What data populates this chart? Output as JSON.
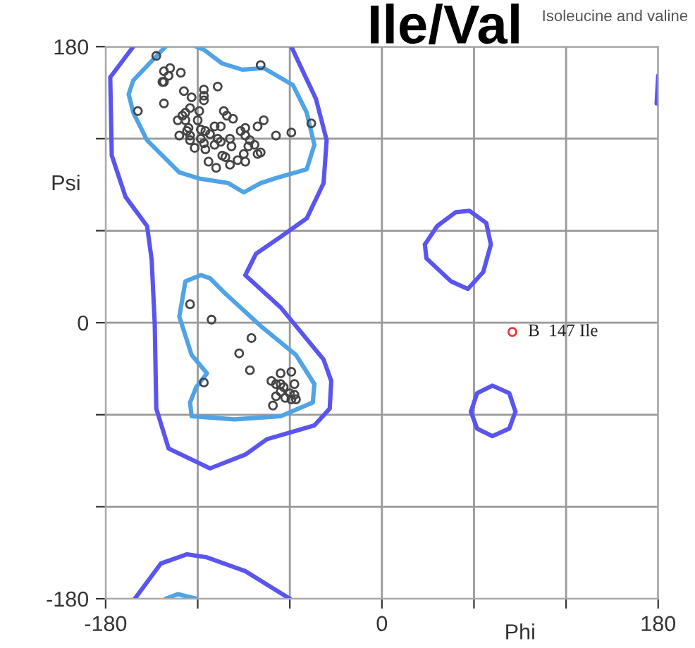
{
  "chart_data": {
    "type": "scatter",
    "title": "Ile/Val",
    "subtitle": "Isoleucine and valine",
    "xlabel": "Phi",
    "ylabel": "Psi",
    "xlim": [
      -180,
      180
    ],
    "ylim": [
      -180,
      180
    ],
    "xticks": [
      -180,
      {
        "value": -120,
        "label": null
      },
      {
        "value": -60,
        "label": null
      },
      0,
      {
        "value": 60,
        "label": null
      },
      {
        "value": 120,
        "label": null
      },
      180
    ],
    "yticks": [
      -180,
      {
        "value": -120,
        "label": null
      },
      {
        "value": -60,
        "label": null
      },
      0,
      {
        "value": 60,
        "label": null
      },
      {
        "value": 120,
        "label": null
      },
      180
    ],
    "grid": true,
    "legend": false,
    "marker": "circle",
    "annotations": [
      {
        "text": "B  147 Ile",
        "x": 85,
        "y": -6
      }
    ],
    "series": [
      {
        "type": "line",
        "marker": "none",
        "color": "#5a55ee",
        "x": [
          -177,
          -162,
          null,
          -177,
          -176,
          -167,
          -153,
          -150,
          -148,
          -147,
          -139,
          -112,
          -89,
          -75,
          -44,
          -34,
          -33,
          null,
          -89,
          -66,
          -38,
          -33,
          null,
          -89,
          -82,
          -66,
          -49,
          -38,
          -36,
          null,
          -59,
          -52,
          -43,
          -36
        ],
        "values": [
          160,
          180,
          null,
          160,
          109,
          82,
          63,
          41,
          -1,
          -56,
          -82,
          -95,
          -86,
          -76,
          -67,
          -56,
          -38,
          null,
          31,
          10,
          -24,
          -38,
          null,
          31,
          45,
          56,
          68,
          91,
          119,
          null,
          180,
          165,
          146,
          119
        ]
      },
      {
        "type": "line",
        "marker": "none",
        "color": "#5a55ee",
        "x": [
          -161,
          -144,
          -127,
          -114,
          -89,
          -60
        ],
        "values": [
          -180,
          -157,
          -151,
          -153,
          -162,
          -180
        ]
      },
      {
        "type": "line",
        "marker": "none",
        "color": "#5a55ee",
        "x": [
          28,
          36,
          48,
          57,
          68,
          71,
          null,
          28,
          29,
          45,
          56,
          66,
          71
        ],
        "values": [
          51,
          63,
          72,
          73,
          65,
          51,
          null,
          51,
          42,
          27,
          22,
          33,
          51
        ]
      },
      {
        "type": "line",
        "marker": "none",
        "color": "#5a55ee",
        "x": [
          58,
          62,
          72,
          83,
          87,
          null,
          58,
          62,
          72,
          83,
          87
        ],
        "values": [
          -58,
          -46,
          -41,
          -46,
          -58,
          null,
          -58,
          -69,
          -74,
          -69,
          -58
        ]
      },
      {
        "type": "line",
        "marker": "none",
        "color": "#5a55ee",
        "x": [
          179,
          179.5,
          180
        ],
        "values": [
          143,
          152,
          161
        ]
      },
      {
        "type": "line",
        "marker": "none",
        "color": "#4fa3e6",
        "x": [
          -165,
          -162,
          -141,
          null,
          -165,
          -162,
          -153,
          -132,
          -119,
          -100,
          -90,
          -79,
          -70,
          -49,
          -44,
          null,
          -121,
          -116,
          -104,
          -91,
          -77,
          -58,
          -49,
          -44
        ],
        "values": [
          149,
          158,
          180,
          null,
          149,
          137,
          119,
          98,
          94,
          91,
          85,
          91,
          94,
          100,
          116,
          null,
          180,
          178,
          169,
          165,
          166,
          155,
          137,
          116
        ]
      },
      {
        "type": "line",
        "marker": "none",
        "color": "#4fa3e6",
        "x": [
          -132,
          -128,
          -118,
          -112,
          -102,
          -78,
          -56,
          -44,
          null,
          -132,
          -124,
          -114,
          null,
          -125,
          -121,
          -114,
          null,
          -125,
          -124,
          -96,
          -66,
          -45,
          -44
        ],
        "values": [
          4,
          27,
          31,
          29,
          19,
          -3,
          -21,
          -40,
          null,
          4,
          -21,
          -33,
          null,
          -52,
          -42,
          -33,
          null,
          -52,
          -61,
          -63,
          -61,
          -52,
          -40
        ]
      },
      {
        "type": "line",
        "marker": "none",
        "color": "#4fa3e6",
        "x": [
          -141,
          -133,
          -121
        ],
        "values": [
          -180,
          -177,
          -180
        ]
      },
      {
        "color": "#444444",
        "x": [
          -147,
          -142,
          -138,
          -139,
          -142,
          -143,
          -131,
          -142,
          -159,
          -129,
          -124,
          -116,
          -116,
          -116,
          -107,
          -125,
          -128,
          -130,
          -133,
          -119,
          -120,
          -103,
          -101,
          -97,
          -77,
          -81,
          -89,
          -92,
          -69,
          -59,
          -46,
          -79,
          -126,
          -118,
          -115,
          -109,
          -105,
          -112,
          -107,
          -99,
          -132,
          -125,
          -118,
          -116,
          -109,
          -105,
          -98,
          -89,
          -86,
          -83,
          -81,
          -79,
          -90,
          -94,
          -104,
          -102,
          -115,
          -122,
          -113,
          -108,
          -99,
          -89,
          -127,
          -128,
          -87,
          -125,
          -125,
          -111,
          -85,
          -93,
          -86,
          -116,
          -66,
          -59,
          -72,
          -69,
          -66,
          -64,
          -57,
          -69,
          -63,
          -59,
          -56,
          -57,
          -71,
          -66,
          -60
        ],
        "values": [
          174,
          164,
          166,
          161,
          157,
          157,
          163,
          143,
          138,
          151,
          147,
          152,
          148,
          145,
          154,
          140,
          137,
          135,
          132,
          138,
          132,
          138,
          135,
          133,
          132,
          128,
          127,
          125,
          122,
          124,
          130,
          168,
          127,
          126,
          125,
          128,
          128,
          123,
          120,
          120,
          122,
          119,
          120,
          117,
          116,
          118,
          115,
          122,
          119,
          116,
          110,
          111,
          110,
          106,
          109,
          108,
          113,
          114,
          105,
          101,
          103,
          105,
          125,
          132,
          115,
          122,
          12,
          2,
          -10,
          -20,
          -31,
          -39,
          -33,
          -32,
          -38,
          -40,
          -40,
          -42,
          -40,
          -48,
          -49,
          -50,
          -50,
          -47,
          -54,
          -45,
          -46
        ]
      },
      {
        "color": "#ee3333",
        "x": [
          85
        ],
        "values": [
          -6
        ]
      }
    ]
  }
}
